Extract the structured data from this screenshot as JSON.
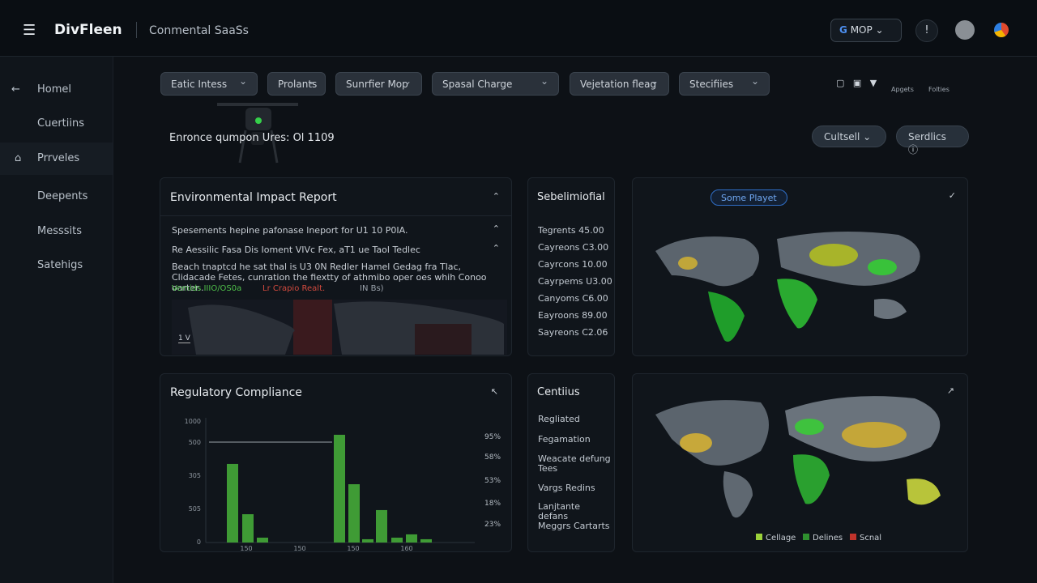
{
  "header": {
    "brand": "DivFleen",
    "subtitle": "Conmental SaaSs",
    "account": "MOP"
  },
  "sidebar": [
    "Homel",
    "Cuertiins",
    "Prrveles",
    "Deepents",
    "Messsits",
    "Satehigs"
  ],
  "filters": [
    "Eatic Intess",
    "Prolants",
    "Sunrfier Mop",
    "Spasal Charge",
    "Vejetation fleag",
    "Stecifiies"
  ],
  "toolbar": [
    "Apgets",
    "Folties"
  ],
  "page_title": "Enronce qumpon Ures: Ol 1109",
  "buttons": [
    "Cultsell",
    "Serdlics"
  ],
  "impact_report": {
    "title": "Environmental Impact Report",
    "lines": [
      "Spesements hepine pafonase lneport for U1 10 P0IA.",
      "Re Aessilic Fasa Dis Ioment VIVc Fex, aT1 ue Taol Tedlec"
    ],
    "paragraph": "Beach tnaptcd he sat thal is U3 0N Redler Hamel Gedag fra Tlac, Clidacade Fetes, cunration the fiextty of athmibo oper oes whih Conoo oarter..",
    "legend": [
      "Vemids IIIO/OS0a",
      "Lr Crapio Realt.",
      "IN Bs)"
    ],
    "scale": "1 V"
  },
  "summary": {
    "title": "Sebelimiofial",
    "items": [
      "Tegrents 45.00",
      "Cayreons C3.00",
      "Cayrcons 10.00",
      "Cayrpems U3.00",
      "Canyoms C6.00",
      "Eayroons 89.00",
      "Sayreons C2.06"
    ]
  },
  "map_top": {
    "badge": "Some Playet"
  },
  "compliance": {
    "title": "Regulatory Compliance",
    "ylim": [
      0,
      1000
    ],
    "y_labels": [
      "1000",
      "500",
      "305",
      "505",
      "0"
    ],
    "right_labels": [
      "95%",
      "58%",
      "53%",
      "18%",
      "23%"
    ],
    "x_labels": [
      "150",
      "150",
      "150",
      "160"
    ],
    "values": [
      647,
      233,
      40,
      887,
      480,
      27,
      267,
      40,
      67,
      27
    ],
    "color": "#3f9b35"
  },
  "centrius": {
    "title": "Centiius",
    "items": [
      "Regliated",
      "Fegamation",
      "Weacate defung Tees",
      "Vargs Redins",
      "Lanjtante defans",
      "Meggrs Cartarts"
    ]
  },
  "map_bottom": {
    "legend": [
      {
        "name": "Cellage",
        "color": "#9bd13a"
      },
      {
        "name": "Delines",
        "color": "#2f8f2f"
      },
      {
        "name": "Scnal",
        "color": "#c0332b"
      }
    ]
  }
}
